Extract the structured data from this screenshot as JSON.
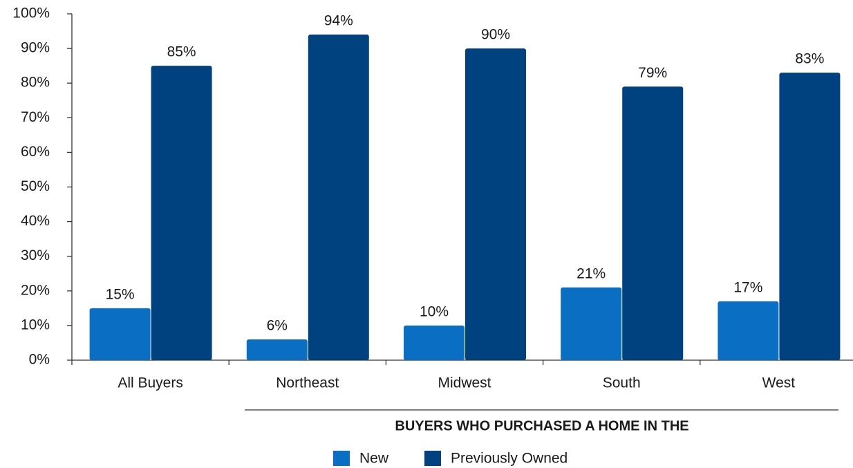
{
  "chart_data": {
    "type": "bar",
    "categories": [
      "All Buyers",
      "Northeast",
      "Midwest",
      "South",
      "West"
    ],
    "series": [
      {
        "name": "New",
        "color": "#0a6fc2",
        "values": [
          15,
          6,
          10,
          21,
          17
        ],
        "value_labels": [
          "15%",
          "6%",
          "10%",
          "21%",
          "17%"
        ]
      },
      {
        "name": "Previously Owned",
        "color": "#00427f",
        "values": [
          85,
          94,
          90,
          79,
          83
        ],
        "value_labels": [
          "85%",
          "94%",
          "90%",
          "79%",
          "83%"
        ]
      }
    ],
    "ylim": [
      0,
      100
    ],
    "yticks": [
      {
        "value": 0,
        "label": "0%"
      },
      {
        "value": 10,
        "label": "10%"
      },
      {
        "value": 20,
        "label": "20%"
      },
      {
        "value": 30,
        "label": "30%"
      },
      {
        "value": 40,
        "label": "40%"
      },
      {
        "value": 50,
        "label": "50%"
      },
      {
        "value": 60,
        "label": "60%"
      },
      {
        "value": 70,
        "label": "70%"
      },
      {
        "value": 80,
        "label": "80%"
      },
      {
        "value": 90,
        "label": "90%"
      },
      {
        "value": 100,
        "label": "100%"
      }
    ],
    "annotation": "BUYERS WHO PURCHASED A HOME IN THE",
    "legend": "bottom",
    "grid": false
  }
}
